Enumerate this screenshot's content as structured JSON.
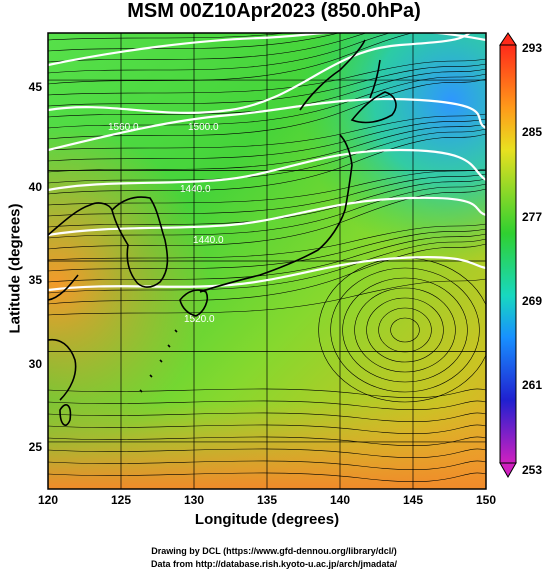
{
  "title": "MSM 00Z10Apr2023 (850.0hPa)",
  "x_axis_label": "Longitude (degrees)",
  "y_axis_label": "Latitude  (degrees)",
  "credit_line_1": "Drawing by DCL (https://www.gfd-dennou.org/library/dcl/)",
  "credit_line_2": "Data from http://database.rish.kyoto-u.ac.jp/arch/jmadata/",
  "map": {
    "lon_range": [
      120,
      150
    ],
    "lat_range": [
      22.4,
      47.6
    ],
    "lon_ticks": [
      "120",
      "125",
      "130",
      "135",
      "140",
      "145",
      "150"
    ],
    "lat_ticks": [
      "25",
      "30",
      "35",
      "40",
      "45"
    ],
    "contour_labels": [
      "1560.0",
      "1500.0",
      "1440.0",
      "1440.0",
      "1520.0"
    ],
    "colorbar_ticks": [
      "293",
      "285",
      "277",
      "269",
      "261",
      "253"
    ],
    "colorbar_range": [
      253,
      293
    ]
  },
  "colors": {
    "warm": "#f07a2a",
    "mid": "#3ccf3c",
    "cool": "#1e9bff",
    "contour": "#ffffff",
    "coast": "#000000"
  }
}
